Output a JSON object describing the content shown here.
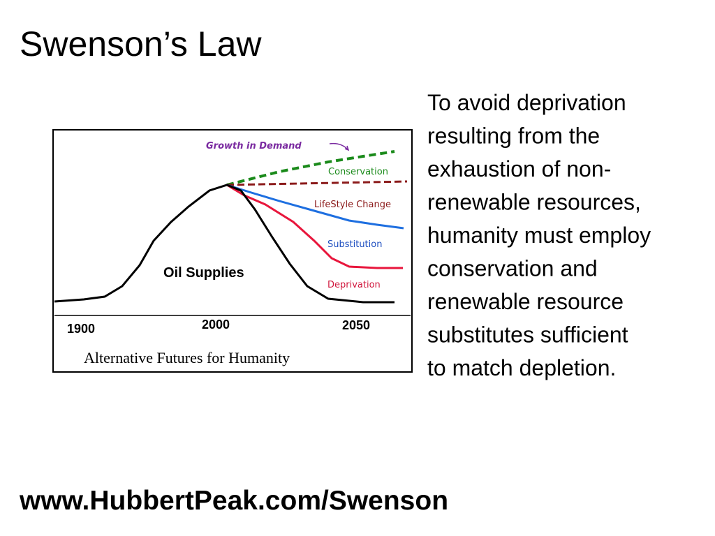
{
  "title": "Swenson’s Law",
  "figure": {
    "labels": {
      "growth": "Growth in Demand",
      "conservation": "Conservation",
      "lifestyle": "LifeStyle Change",
      "substitution": "Substitution",
      "deprivation": "Deprivation",
      "oil": "Oil Supplies"
    },
    "axis": [
      "1900",
      "2000",
      "2050"
    ],
    "caption": "Alternative Futures for Humanity"
  },
  "body": {
    "lines": [
      "To avoid deprivation",
      "resulting from the",
      "exhaustion of non-",
      "renewable resources,",
      "humanity must employ",
      "conservation and",
      "renewable resource",
      "substitutes sufficient",
      "to match depletion."
    ]
  },
  "footer": "www.HubbertPeak.com/Swenson"
}
